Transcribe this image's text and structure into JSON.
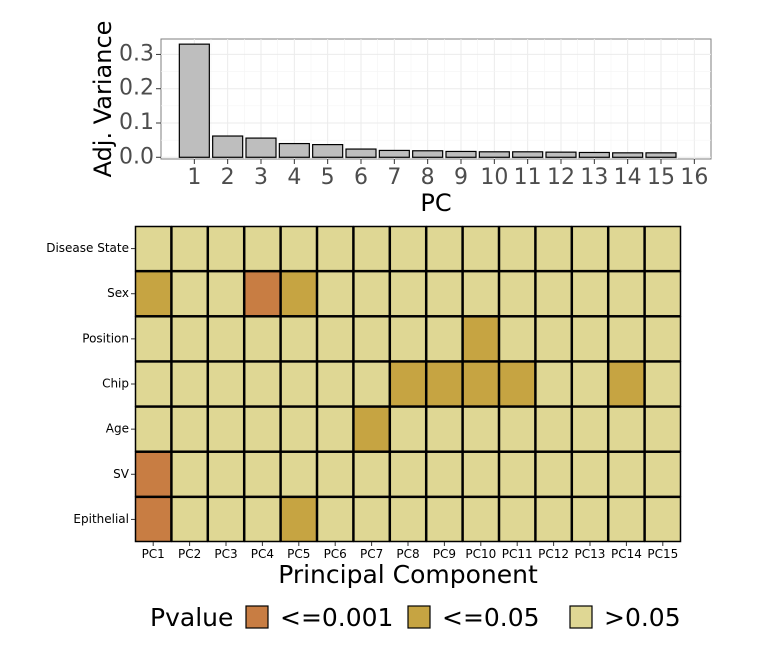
{
  "chart_data": [
    {
      "type": "bar",
      "xlabel": "PC",
      "ylabel": "Adj. Variance",
      "categories": [
        "1",
        "2",
        "3",
        "4",
        "5",
        "6",
        "7",
        "8",
        "9",
        "10",
        "11",
        "12",
        "13",
        "14",
        "15"
      ],
      "x_ticks": [
        "1",
        "2",
        "3",
        "4",
        "5",
        "6",
        "7",
        "8",
        "9",
        "10",
        "11",
        "12",
        "13",
        "14",
        "15",
        "16"
      ],
      "values": [
        0.33,
        0.062,
        0.056,
        0.04,
        0.037,
        0.024,
        0.02,
        0.019,
        0.017,
        0.016,
        0.016,
        0.015,
        0.014,
        0.013,
        0.013
      ],
      "y_ticks": [
        "0.0",
        "0.1",
        "0.2",
        "0.3"
      ],
      "ylim": [
        0,
        0.345
      ],
      "grid": true,
      "colors": {
        "bar": "#bebebe",
        "bar_border": "#000000",
        "panel_border": "#7f7f7f",
        "grid": "#ebebeb"
      }
    },
    {
      "type": "heatmap",
      "xlabel": "Principal Component",
      "x_categories": [
        "PC1",
        "PC2",
        "PC3",
        "PC4",
        "PC5",
        "PC6",
        "PC7",
        "PC8",
        "PC9",
        "PC10",
        "PC11",
        "PC12",
        "PC13",
        "PC14",
        "PC15"
      ],
      "y_categories": [
        "Disease State",
        "Sex",
        "Position",
        "Chip",
        "Age",
        "SV",
        "Epithelial"
      ],
      "levels": [
        {
          "key": "<=0.001",
          "color": "#c87d43"
        },
        {
          "key": "<=0.05",
          "color": "#c6a442"
        },
        {
          "key": ">0.05",
          "color": "#dfd794"
        }
      ],
      "cells": [
        [
          2,
          2,
          2,
          2,
          2,
          2,
          2,
          2,
          2,
          2,
          2,
          2,
          2,
          2,
          2
        ],
        [
          1,
          2,
          2,
          0,
          1,
          2,
          2,
          2,
          2,
          2,
          2,
          2,
          2,
          2,
          2
        ],
        [
          2,
          2,
          2,
          2,
          2,
          2,
          2,
          2,
          2,
          1,
          2,
          2,
          2,
          2,
          2
        ],
        [
          2,
          2,
          2,
          2,
          2,
          2,
          2,
          1,
          1,
          1,
          1,
          2,
          2,
          1,
          2
        ],
        [
          2,
          2,
          2,
          2,
          2,
          2,
          1,
          2,
          2,
          2,
          2,
          2,
          2,
          2,
          2
        ],
        [
          0,
          2,
          2,
          2,
          2,
          2,
          2,
          2,
          2,
          2,
          2,
          2,
          2,
          2,
          2
        ],
        [
          0,
          2,
          2,
          2,
          1,
          2,
          2,
          2,
          2,
          2,
          2,
          2,
          2,
          2,
          2
        ]
      ],
      "legend": {
        "title": "Pvalue",
        "position": "bottom"
      }
    }
  ]
}
